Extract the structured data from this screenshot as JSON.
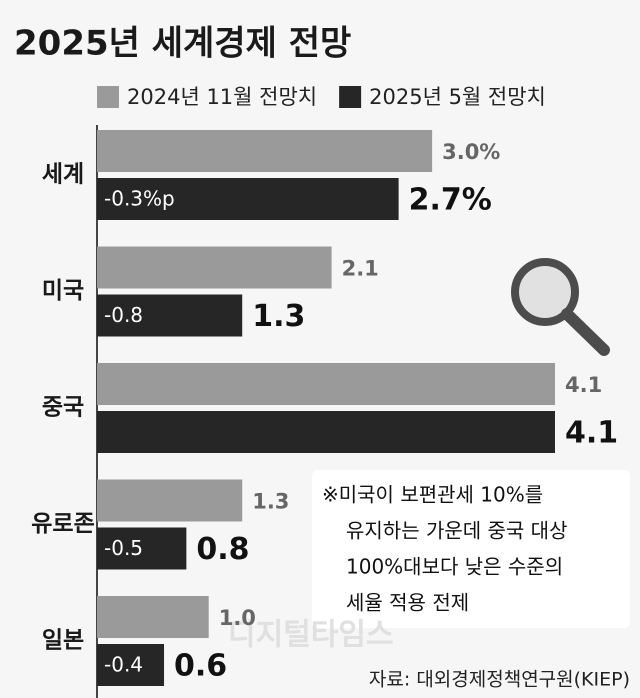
{
  "chart_data": {
    "type": "bar",
    "orientation": "horizontal",
    "title": "2025년 세계경제 전망",
    "categories": [
      "세계",
      "미국",
      "중국",
      "유로존",
      "일본"
    ],
    "series": [
      {
        "name": "2024년 11월 전망치",
        "color": "#9a9a9a",
        "values": [
          3.0,
          2.1,
          4.1,
          1.3,
          1.0
        ],
        "value_labels": [
          "3.0%",
          "2.1",
          "4.1",
          "1.3",
          "1.0"
        ]
      },
      {
        "name": "2025년 5월 전망치",
        "color": "#262626",
        "values": [
          2.7,
          1.3,
          4.1,
          0.8,
          0.6
        ],
        "value_labels": [
          "2.7%",
          "1.3",
          "4.1",
          "0.8",
          "0.6"
        ]
      }
    ],
    "change_labels": [
      "-0.3%p",
      "-0.8",
      null,
      "-0.5",
      "-0.4"
    ],
    "xlim": [
      0,
      4.1
    ],
    "note": [
      "※미국이 보편관세 10%를",
      "유지하는 가운데 중국 대상",
      "100%대보다 낮은 수준의",
      "세율 적용 전제"
    ],
    "source": "자료: 대외경제정책연구원(KIEP)",
    "watermark": "디지털타임스"
  }
}
